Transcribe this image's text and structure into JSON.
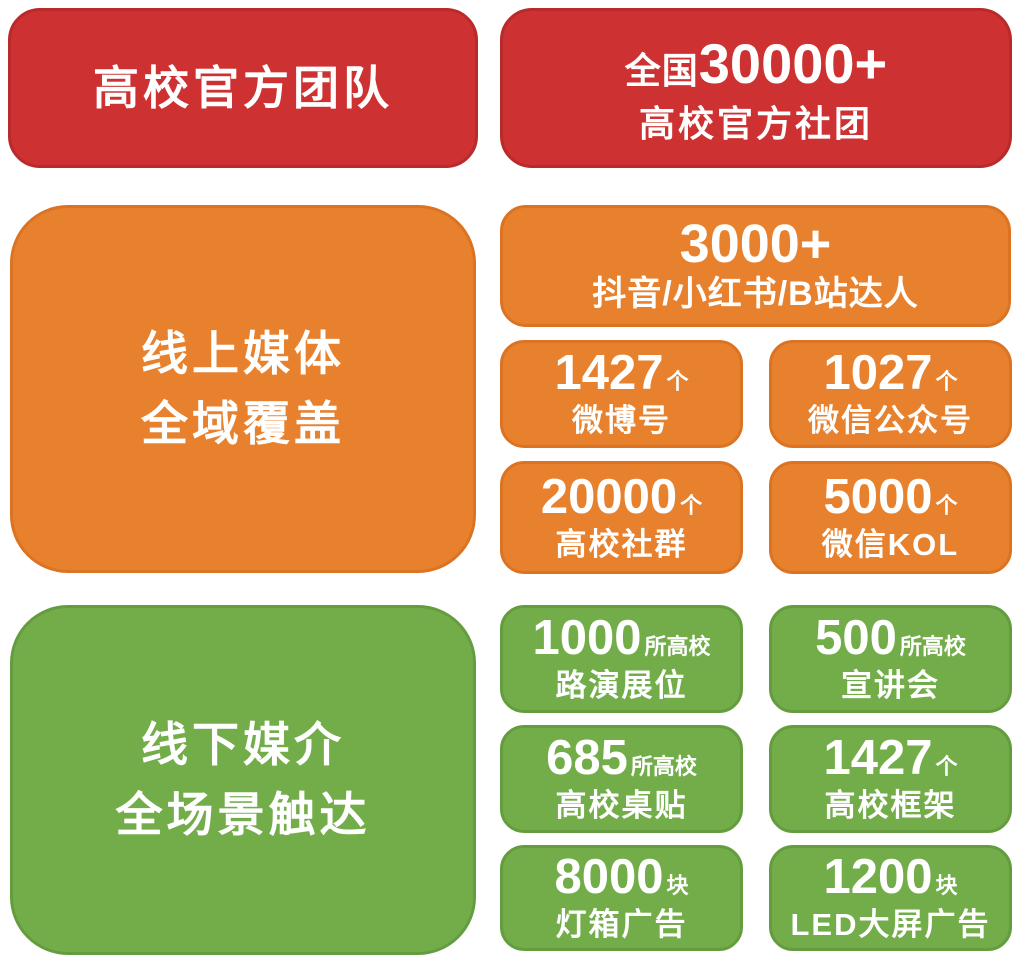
{
  "colors": {
    "red": "#cd3131",
    "red-border": "#b92a2a",
    "orange": "#e8812e",
    "orange-border": "#db7322",
    "green": "#72ad4a",
    "green-border": "#659c3f",
    "text": "#ffffff",
    "background": "#ffffff"
  },
  "official": {
    "left_title": "高校官方团队",
    "card": {
      "prefix": "全国",
      "number": "30000+",
      "label": "高校官方社团"
    }
  },
  "online": {
    "title_line1": "线上媒体",
    "title_line2": "全域覆盖",
    "wide_card": {
      "number": "3000+",
      "label": "抖音/小红书/B站达人"
    },
    "cards": [
      {
        "number": "1427",
        "unit": "个",
        "label": "微博号"
      },
      {
        "number": "1027",
        "unit": "个",
        "label": "微信公众号"
      },
      {
        "number": "20000",
        "unit": "个",
        "label": "高校社群"
      },
      {
        "number": "5000",
        "unit": "个",
        "label": "微信KOL"
      }
    ]
  },
  "offline": {
    "title_line1": "线下媒介",
    "title_line2": "全场景触达",
    "cards": [
      {
        "number": "1000",
        "unit": "所高校",
        "label": "路演展位"
      },
      {
        "number": "500",
        "unit": "所高校",
        "label": "宣讲会"
      },
      {
        "number": "685",
        "unit": "所高校",
        "label": "高校桌贴"
      },
      {
        "number": "1427",
        "unit": "个",
        "label": "高校框架"
      },
      {
        "number": "8000",
        "unit": "块",
        "label": "灯箱广告"
      },
      {
        "number": "1200",
        "unit": "块",
        "label": "LED大屏广告"
      }
    ]
  }
}
